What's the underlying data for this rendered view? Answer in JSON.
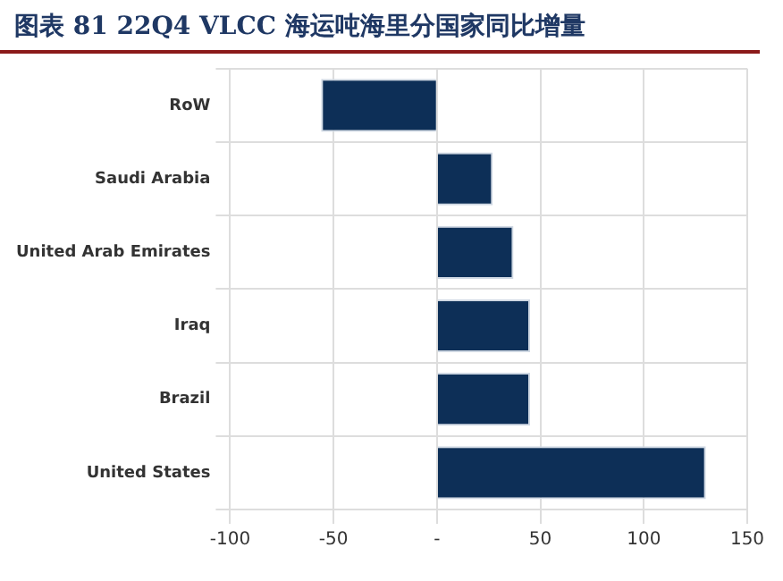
{
  "chart_data": {
    "type": "bar",
    "orientation": "horizontal",
    "title": "图表 81   22Q4 VLCC 海运吨海里分国家同比增量",
    "categories": [
      "RoW",
      "Saudi Arabia",
      "United Arab Emirates",
      "Iraq",
      "Brazil",
      "United States"
    ],
    "values": [
      -56,
      27,
      37,
      45,
      45,
      130
    ],
    "color": "#0d2f57",
    "xlim": [
      -100,
      150
    ],
    "xticks": [
      -100,
      -50,
      {
        "value": 0,
        "label": "-"
      },
      50,
      100,
      150
    ],
    "grid": true
  }
}
